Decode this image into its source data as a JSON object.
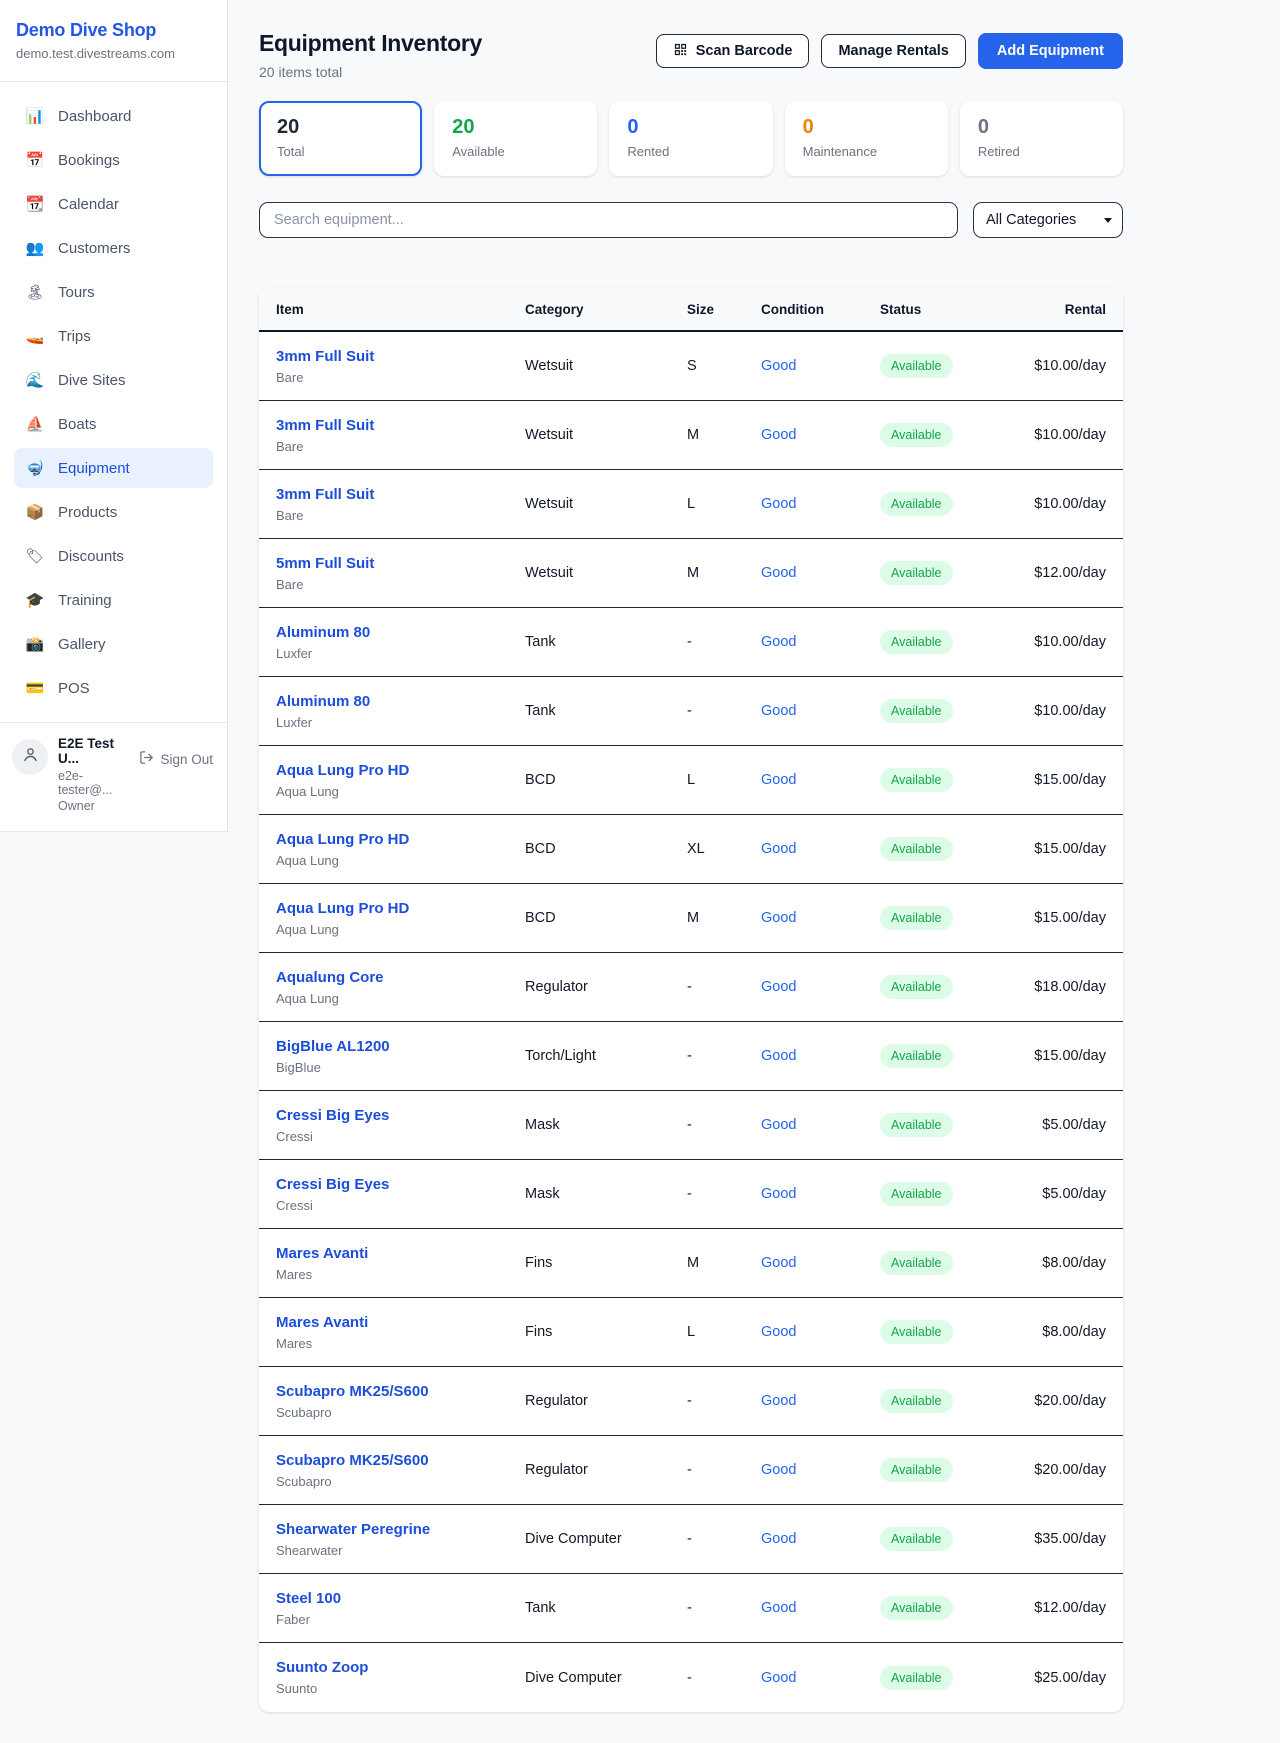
{
  "colors": {
    "accent": "#2563eb",
    "link": "#1d4ed8",
    "available_green": "#16a34a",
    "badge_bg": "#dcfce7",
    "maintenance_orange": "#ea8308",
    "muted": "#6b7280",
    "dark": "#1f2937"
  },
  "sidebar": {
    "brand": {
      "name": "Demo Dive Shop",
      "domain": "demo.test.divestreams.com"
    },
    "nav": [
      {
        "id": "dashboard",
        "icon": "📊",
        "icon_name": "dashboard-chart-icon",
        "label": "Dashboard",
        "active": false
      },
      {
        "id": "bookings",
        "icon": "📅",
        "icon_name": "bookings-calendar-icon",
        "label": "Bookings",
        "active": false
      },
      {
        "id": "calendar",
        "icon": "📆",
        "icon_name": "calendar-icon",
        "label": "Calendar",
        "active": false
      },
      {
        "id": "customers",
        "icon": "👥",
        "icon_name": "customers-icon",
        "label": "Customers",
        "active": false
      },
      {
        "id": "tours",
        "icon": "🏝",
        "icon_name": "tours-island-icon",
        "label": "Tours",
        "active": false
      },
      {
        "id": "trips",
        "icon": "🚤",
        "icon_name": "trips-speedboat-icon",
        "label": "Trips",
        "active": false
      },
      {
        "id": "dive-sites",
        "icon": "🌊",
        "icon_name": "dive-sites-wave-icon",
        "label": "Dive Sites",
        "active": false
      },
      {
        "id": "boats",
        "icon": "⛵",
        "icon_name": "boats-sailboat-icon",
        "label": "Boats",
        "active": false
      },
      {
        "id": "equipment",
        "icon": "🤿",
        "icon_name": "equipment-dive-mask-icon",
        "label": "Equipment",
        "active": true
      },
      {
        "id": "products",
        "icon": "📦",
        "icon_name": "products-box-icon",
        "label": "Products",
        "active": false
      },
      {
        "id": "discounts",
        "icon": "🏷",
        "icon_name": "discounts-tag-icon",
        "label": "Discounts",
        "active": false
      },
      {
        "id": "training",
        "icon": "🎓",
        "icon_name": "training-cap-icon",
        "label": "Training",
        "active": false
      },
      {
        "id": "gallery",
        "icon": "📸",
        "icon_name": "gallery-camera-icon",
        "label": "Gallery",
        "active": false
      },
      {
        "id": "pos",
        "icon": "💳",
        "icon_name": "pos-credit-card-icon",
        "label": "POS",
        "active": false
      }
    ],
    "user": {
      "name": "E2E Test U...",
      "email": "e2e-tester@...",
      "role": "Owner",
      "sign_out_label": "Sign Out"
    }
  },
  "header": {
    "title": "Equipment Inventory",
    "subtitle": "20 items total",
    "scan_barcode_label": "Scan Barcode",
    "manage_rentals_label": "Manage Rentals",
    "add_equipment_label": "Add Equipment"
  },
  "stats": [
    {
      "id": "total",
      "value": "20",
      "label": "Total",
      "color": "#1f2937",
      "selected": true
    },
    {
      "id": "available",
      "value": "20",
      "label": "Available",
      "color": "#16a34a",
      "selected": false
    },
    {
      "id": "rented",
      "value": "0",
      "label": "Rented",
      "color": "#2563eb",
      "selected": false
    },
    {
      "id": "maintenance",
      "value": "0",
      "label": "Maintenance",
      "color": "#ea8308",
      "selected": false
    },
    {
      "id": "retired",
      "value": "0",
      "label": "Retired",
      "color": "#6b7280",
      "selected": false
    }
  ],
  "filters": {
    "search_placeholder": "Search equipment...",
    "category_selected": "All Categories"
  },
  "table": {
    "columns": [
      {
        "key": "item",
        "label": "Item"
      },
      {
        "key": "category",
        "label": "Category"
      },
      {
        "key": "size",
        "label": "Size"
      },
      {
        "key": "condition",
        "label": "Condition"
      },
      {
        "key": "status",
        "label": "Status"
      },
      {
        "key": "rental",
        "label": "Rental"
      }
    ],
    "rows": [
      {
        "name": "3mm Full Suit",
        "brand": "Bare",
        "category": "Wetsuit",
        "size": "S",
        "condition": "Good",
        "status": "Available",
        "rental": "$10.00/day"
      },
      {
        "name": "3mm Full Suit",
        "brand": "Bare",
        "category": "Wetsuit",
        "size": "M",
        "condition": "Good",
        "status": "Available",
        "rental": "$10.00/day"
      },
      {
        "name": "3mm Full Suit",
        "brand": "Bare",
        "category": "Wetsuit",
        "size": "L",
        "condition": "Good",
        "status": "Available",
        "rental": "$10.00/day"
      },
      {
        "name": "5mm Full Suit",
        "brand": "Bare",
        "category": "Wetsuit",
        "size": "M",
        "condition": "Good",
        "status": "Available",
        "rental": "$12.00/day"
      },
      {
        "name": "Aluminum 80",
        "brand": "Luxfer",
        "category": "Tank",
        "size": "-",
        "condition": "Good",
        "status": "Available",
        "rental": "$10.00/day"
      },
      {
        "name": "Aluminum 80",
        "brand": "Luxfer",
        "category": "Tank",
        "size": "-",
        "condition": "Good",
        "status": "Available",
        "rental": "$10.00/day"
      },
      {
        "name": "Aqua Lung Pro HD",
        "brand": "Aqua Lung",
        "category": "BCD",
        "size": "L",
        "condition": "Good",
        "status": "Available",
        "rental": "$15.00/day"
      },
      {
        "name": "Aqua Lung Pro HD",
        "brand": "Aqua Lung",
        "category": "BCD",
        "size": "XL",
        "condition": "Good",
        "status": "Available",
        "rental": "$15.00/day"
      },
      {
        "name": "Aqua Lung Pro HD",
        "brand": "Aqua Lung",
        "category": "BCD",
        "size": "M",
        "condition": "Good",
        "status": "Available",
        "rental": "$15.00/day"
      },
      {
        "name": "Aqualung Core",
        "brand": "Aqua Lung",
        "category": "Regulator",
        "size": "-",
        "condition": "Good",
        "status": "Available",
        "rental": "$18.00/day"
      },
      {
        "name": "BigBlue AL1200",
        "brand": "BigBlue",
        "category": "Torch/Light",
        "size": "-",
        "condition": "Good",
        "status": "Available",
        "rental": "$15.00/day"
      },
      {
        "name": "Cressi Big Eyes",
        "brand": "Cressi",
        "category": "Mask",
        "size": "-",
        "condition": "Good",
        "status": "Available",
        "rental": "$5.00/day"
      },
      {
        "name": "Cressi Big Eyes",
        "brand": "Cressi",
        "category": "Mask",
        "size": "-",
        "condition": "Good",
        "status": "Available",
        "rental": "$5.00/day"
      },
      {
        "name": "Mares Avanti",
        "brand": "Mares",
        "category": "Fins",
        "size": "M",
        "condition": "Good",
        "status": "Available",
        "rental": "$8.00/day"
      },
      {
        "name": "Mares Avanti",
        "brand": "Mares",
        "category": "Fins",
        "size": "L",
        "condition": "Good",
        "status": "Available",
        "rental": "$8.00/day"
      },
      {
        "name": "Scubapro MK25/S600",
        "brand": "Scubapro",
        "category": "Regulator",
        "size": "-",
        "condition": "Good",
        "status": "Available",
        "rental": "$20.00/day"
      },
      {
        "name": "Scubapro MK25/S600",
        "brand": "Scubapro",
        "category": "Regulator",
        "size": "-",
        "condition": "Good",
        "status": "Available",
        "rental": "$20.00/day"
      },
      {
        "name": "Shearwater Peregrine",
        "brand": "Shearwater",
        "category": "Dive Computer",
        "size": "-",
        "condition": "Good",
        "status": "Available",
        "rental": "$35.00/day"
      },
      {
        "name": "Steel 100",
        "brand": "Faber",
        "category": "Tank",
        "size": "-",
        "condition": "Good",
        "status": "Available",
        "rental": "$12.00/day"
      },
      {
        "name": "Suunto Zoop",
        "brand": "Suunto",
        "category": "Dive Computer",
        "size": "-",
        "condition": "Good",
        "status": "Available",
        "rental": "$25.00/day"
      }
    ]
  }
}
